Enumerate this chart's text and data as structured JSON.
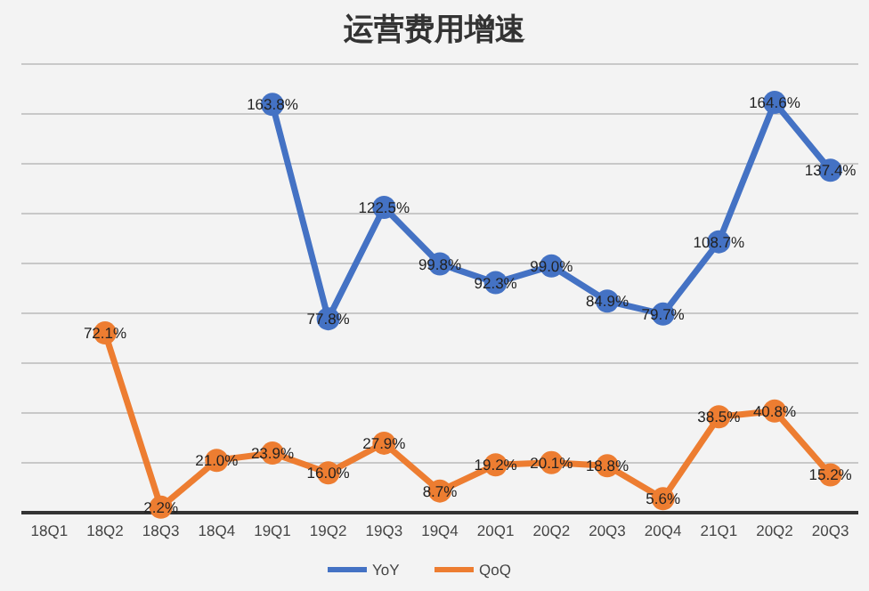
{
  "chart_data": {
    "type": "line",
    "title": "运营费用增速",
    "categories": [
      "18Q1",
      "18Q2",
      "18Q3",
      "18Q4",
      "19Q1",
      "19Q2",
      "19Q3",
      "19Q4",
      "20Q1",
      "20Q2",
      "20Q3",
      "20Q4",
      "21Q1",
      "20Q2",
      "20Q3"
    ],
    "series": [
      {
        "name": "YoY",
        "color": "#4472c4",
        "values": [
          null,
          null,
          null,
          null,
          163.8,
          77.8,
          122.5,
          99.8,
          92.3,
          99.0,
          84.9,
          79.7,
          108.7,
          164.6,
          137.4
        ],
        "value_labels": [
          null,
          null,
          null,
          null,
          "163.8%",
          "77.8%",
          "122.5%",
          "99.8%",
          "92.3%",
          "99.0%",
          "84.9%",
          "79.7%",
          "108.7%",
          "164.6%",
          "137.4%"
        ]
      },
      {
        "name": "QoQ",
        "color": "#ed7d31",
        "values": [
          null,
          72.1,
          2.2,
          21.0,
          23.9,
          16.0,
          27.9,
          8.7,
          19.2,
          20.1,
          18.8,
          5.6,
          38.5,
          40.8,
          15.2
        ],
        "value_labels": [
          null,
          "72.1%",
          "2.2%",
          "21.0%",
          "23.9%",
          "16.0%",
          "27.9%",
          "8.7%",
          "19.2%",
          "20.1%",
          "18.8%",
          "5.6%",
          "38.5%",
          "40.8%",
          "15.2%"
        ]
      }
    ],
    "ylim": [
      0,
      180
    ],
    "yticks": [
      {
        "value": 20,
        "label": null
      },
      {
        "value": 40,
        "label": null
      },
      {
        "value": 60,
        "label": null
      },
      {
        "value": 80,
        "label": null
      },
      {
        "value": 100,
        "label": null
      },
      {
        "value": 120,
        "label": null
      },
      {
        "value": 140,
        "label": null
      },
      {
        "value": 160,
        "label": null
      },
      {
        "value": 180,
        "label": null
      }
    ],
    "tick_labels": "x",
    "grid": "y",
    "legend": "bottom",
    "marker": "circle",
    "line_style": "solid"
  }
}
